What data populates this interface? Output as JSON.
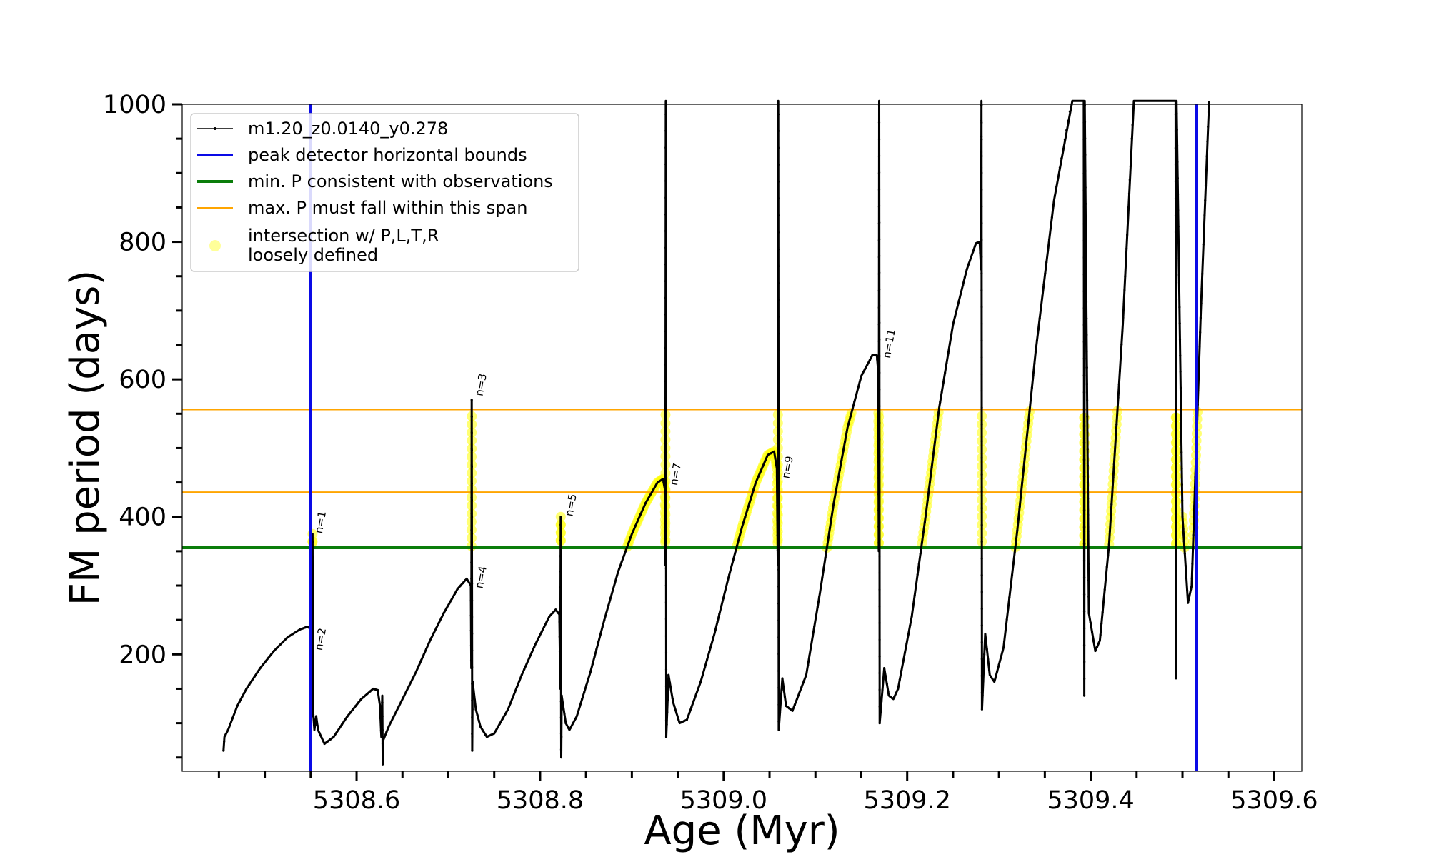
{
  "chart_data": {
    "type": "line",
    "xlabel": "Age (Myr)",
    "ylabel": "FM period (days)",
    "xlim": [
      5308.41,
      5309.63
    ],
    "ylim": [
      30,
      1000
    ],
    "x_major_ticks": [
      5308.6,
      5308.8,
      5309.0,
      5309.2,
      5309.4,
      5309.6
    ],
    "x_tick_labels": [
      "5308.6",
      "5308.8",
      "5309.0",
      "5309.2",
      "5309.4",
      "5309.6"
    ],
    "x_minor_step": 0.05,
    "y_major_ticks": [
      200,
      400,
      600,
      800,
      1000
    ],
    "y_tick_labels": [
      "200",
      "400",
      "600",
      "800",
      "1000"
    ],
    "y_minor_step": 50,
    "grid": false,
    "legend_placement": "upper-left",
    "legend": [
      {
        "key": "model",
        "label": "m1.20_z0.0140_y0.278",
        "style": "line-dot",
        "color": "#000000"
      },
      {
        "key": "peak",
        "label": "peak detector horizontal bounds",
        "style": "line",
        "color": "#0a0ae6"
      },
      {
        "key": "minP",
        "label": "min. P consistent with observations",
        "style": "line",
        "color": "#0a7d0a"
      },
      {
        "key": "maxP",
        "label": "max. P must fall within this span",
        "style": "thin-line",
        "color": "#ffa500"
      },
      {
        "key": "inter",
        "label": "intersection w/ P,L,T,R",
        "label2": "loosely defined",
        "style": "marker",
        "color": "#ffff00"
      }
    ],
    "vlines": [
      5308.55,
      5309.515
    ],
    "hline_min": 355,
    "hlines_max": [
      436,
      556
    ],
    "series": [
      {
        "name": "m1.20_z0.0140_y0.278",
        "color": "#000000",
        "points": [
          [
            5308.455,
            60
          ],
          [
            5308.456,
            80
          ],
          [
            5308.46,
            90
          ],
          [
            5308.47,
            125
          ],
          [
            5308.48,
            150
          ],
          [
            5308.495,
            180
          ],
          [
            5308.51,
            205
          ],
          [
            5308.525,
            225
          ],
          [
            5308.538,
            236
          ],
          [
            5308.546,
            240
          ],
          [
            5308.549,
            238
          ],
          [
            5308.5505,
            225
          ],
          [
            5308.551,
            110
          ],
          [
            5308.5515,
            200
          ],
          [
            5308.552,
            375
          ],
          [
            5308.5525,
            120
          ],
          [
            5308.554,
            90
          ],
          [
            5308.556,
            110
          ],
          [
            5308.558,
            90
          ],
          [
            5308.565,
            70
          ],
          [
            5308.575,
            80
          ],
          [
            5308.59,
            110
          ],
          [
            5308.605,
            135
          ],
          [
            5308.618,
            150
          ],
          [
            5308.623,
            148
          ],
          [
            5308.6255,
            125
          ],
          [
            5308.627,
            80
          ],
          [
            5308.628,
            140
          ],
          [
            5308.6285,
            40
          ],
          [
            5308.629,
            75
          ],
          [
            5308.635,
            95
          ],
          [
            5308.65,
            135
          ],
          [
            5308.665,
            175
          ],
          [
            5308.68,
            220
          ],
          [
            5308.695,
            260
          ],
          [
            5308.71,
            295
          ],
          [
            5308.72,
            310
          ],
          [
            5308.7245,
            300
          ],
          [
            5308.725,
            180
          ],
          [
            5308.7255,
            570
          ],
          [
            5308.726,
            60
          ],
          [
            5308.7265,
            160
          ],
          [
            5308.73,
            120
          ],
          [
            5308.735,
            95
          ],
          [
            5308.742,
            80
          ],
          [
            5308.75,
            85
          ],
          [
            5308.765,
            120
          ],
          [
            5308.78,
            170
          ],
          [
            5308.795,
            215
          ],
          [
            5308.81,
            255
          ],
          [
            5308.817,
            265
          ],
          [
            5308.821,
            258
          ],
          [
            5308.822,
            150
          ],
          [
            5308.8225,
            400
          ],
          [
            5308.823,
            50
          ],
          [
            5308.8235,
            140
          ],
          [
            5308.828,
            100
          ],
          [
            5308.832,
            90
          ],
          [
            5308.84,
            110
          ],
          [
            5308.855,
            175
          ],
          [
            5308.87,
            250
          ],
          [
            5308.885,
            320
          ],
          [
            5308.9,
            375
          ],
          [
            5308.915,
            420
          ],
          [
            5308.928,
            450
          ],
          [
            5308.934,
            455
          ],
          [
            5308.936,
            440
          ],
          [
            5308.9365,
            330
          ],
          [
            5308.937,
            1010
          ],
          [
            5308.9375,
            80
          ],
          [
            5308.94,
            170
          ],
          [
            5308.945,
            130
          ],
          [
            5308.952,
            100
          ],
          [
            5308.96,
            105
          ],
          [
            5308.975,
            160
          ],
          [
            5308.99,
            230
          ],
          [
            5309.005,
            310
          ],
          [
            5309.02,
            385
          ],
          [
            5309.035,
            450
          ],
          [
            5309.048,
            490
          ],
          [
            5309.055,
            495
          ],
          [
            5309.058,
            470
          ],
          [
            5309.059,
            330
          ],
          [
            5309.0595,
            1010
          ],
          [
            5309.06,
            90
          ],
          [
            5309.064,
            165
          ],
          [
            5309.068,
            125
          ],
          [
            5309.075,
            118
          ],
          [
            5309.09,
            170
          ],
          [
            5309.105,
            290
          ],
          [
            5309.12,
            420
          ],
          [
            5309.135,
            530
          ],
          [
            5309.15,
            605
          ],
          [
            5309.162,
            635
          ],
          [
            5309.167,
            635
          ],
          [
            5309.1685,
            610
          ],
          [
            5309.169,
            350
          ],
          [
            5309.1695,
            1010
          ],
          [
            5309.17,
            100
          ],
          [
            5309.175,
            180
          ],
          [
            5309.18,
            140
          ],
          [
            5309.185,
            135
          ],
          [
            5309.19,
            150
          ],
          [
            5309.205,
            255
          ],
          [
            5309.22,
            400
          ],
          [
            5309.235,
            560
          ],
          [
            5309.25,
            680
          ],
          [
            5309.265,
            760
          ],
          [
            5309.275,
            798
          ],
          [
            5309.279,
            800
          ],
          [
            5309.2805,
            760
          ],
          [
            5309.281,
            1010
          ],
          [
            5309.2815,
            120
          ],
          [
            5309.285,
            230
          ],
          [
            5309.29,
            170
          ],
          [
            5309.295,
            160
          ],
          [
            5309.305,
            210
          ],
          [
            5309.32,
            380
          ],
          [
            5309.34,
            640
          ],
          [
            5309.36,
            860
          ],
          [
            5309.38,
            1010
          ],
          [
            5309.3925,
            1010
          ],
          [
            5309.393,
            140
          ],
          [
            5309.3935,
            1010
          ],
          [
            5309.398,
            260
          ],
          [
            5309.405,
            205
          ],
          [
            5309.41,
            220
          ],
          [
            5309.42,
            360
          ],
          [
            5309.435,
            680
          ],
          [
            5309.447,
            1010
          ],
          [
            5309.4925,
            1010
          ],
          [
            5309.493,
            165
          ],
          [
            5309.4935,
            1010
          ],
          [
            5309.5,
            400
          ],
          [
            5309.506,
            275
          ],
          [
            5309.51,
            300
          ],
          [
            5309.52,
            700
          ],
          [
            5309.529,
            1010
          ]
        ]
      }
    ],
    "intersection_ranges": [
      [
        5308.5485,
        5308.5525
      ],
      [
        5308.7245,
        5308.7255
      ],
      [
        5308.8215,
        5308.823
      ],
      [
        5308.875,
        5308.937
      ],
      [
        5308.99,
        5309.0595
      ],
      [
        5309.1,
        5309.1695
      ],
      [
        5309.2,
        5309.2815
      ],
      [
        5309.3,
        5309.3935
      ],
      [
        5309.41,
        5309.4935
      ],
      [
        5309.5,
        5309.52
      ]
    ],
    "annotations": [
      {
        "text": "n=1",
        "x": 5308.553,
        "y": 375
      },
      {
        "text": "n=2",
        "x": 5308.553,
        "y": 205
      },
      {
        "text": "n=3",
        "x": 5308.728,
        "y": 575
      },
      {
        "text": "n=4",
        "x": 5308.728,
        "y": 295
      },
      {
        "text": "n=5",
        "x": 5308.826,
        "y": 400
      },
      {
        "text": "n=7",
        "x": 5308.94,
        "y": 445
      },
      {
        "text": "n=9",
        "x": 5309.062,
        "y": 455
      },
      {
        "text": "n=11",
        "x": 5309.172,
        "y": 630
      }
    ]
  }
}
